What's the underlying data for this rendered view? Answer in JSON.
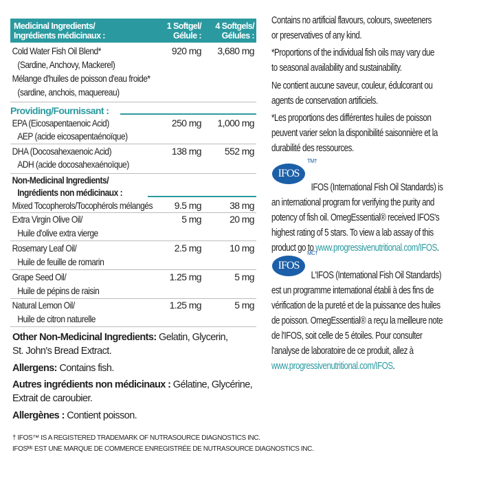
{
  "table": {
    "header": {
      "col0_line1": "Medicinal Ingredients/",
      "col0_line2": "Ingrédients médicinaux :",
      "col1_line1": "1 Softgel/",
      "col1_line2": "Gélule :",
      "col2_line1": "4 Softgels/",
      "col2_line2": "Gélules :"
    },
    "fish_oil": {
      "name": "Cold Water Fish Oil Blend*",
      "sub": "(Sardine, Anchovy, Mackerel)",
      "name_fr": "Mélange d'huiles de poisson d'eau froide*",
      "sub_fr": "(sardine, anchois, maquereau)",
      "v1": "920 mg",
      "v2": "3,680 mg"
    },
    "providing_label": "Providing/Fournissant :",
    "epa": {
      "name": "EPA (Eicosapentaenoic Acid)",
      "sub": "AEP (acide eicosapentaénoïque)",
      "v1": "250 mg",
      "v2": "1,000 mg"
    },
    "dha": {
      "name": "DHA (Docosahexaenoic Acid)",
      "sub": "ADH (acide docosahexaénoïque)",
      "v1": "138 mg",
      "v2": "552 mg"
    },
    "non_medicinal_label_line1": "Non-Medicinal Ingredients/",
    "non_medicinal_label_line2": "Ingrédients non médicinaux :",
    "non_medicinal": [
      {
        "name": "Mixed Tocopherols/Tocophérols mélangés",
        "sub": "",
        "v1": "9.5 mg",
        "v2": "38 mg"
      },
      {
        "name": "Extra Virgin Olive Oil/",
        "sub": "Huile d'olive extra vierge",
        "v1": "5 mg",
        "v2": "20 mg"
      },
      {
        "name": "Rosemary Leaf Oil/",
        "sub": "Huile de feuille de romarin",
        "v1": "2.5 mg",
        "v2": "10 mg"
      },
      {
        "name": "Grape Seed Oil/",
        "sub": "Huile de pépins de raisin",
        "v1": "1.25 mg",
        "v2": "5 mg"
      },
      {
        "name": "Natural Lemon Oil/",
        "sub": "Huile de citron naturelle",
        "v1": "1.25 mg",
        "v2": "5 mg"
      }
    ]
  },
  "other": {
    "other_label": "Other Non-Medicinal Ingredients:",
    "other_text": " Gelatin, Glycerin,",
    "other_text2": "St. John's Bread Extract.",
    "allergens_label": "Allergens:",
    "allergens_text": " Contains fish.",
    "autres_label": "Autres ingrédients non médicinaux :",
    "autres_text": " Gélatine, Glycérine,",
    "autres_text2": "Extrait de caroubier.",
    "allergenes_label": "Allergènes :",
    "allergenes_text": " Contient poisson."
  },
  "right": {
    "p1": [
      "Contains no artificial flavours, colours, sweeteners",
      "or preservatives of any kind."
    ],
    "p2": [
      "*Proportions of the individual fish oils may vary due",
      "to seasonal availability and sustainability."
    ],
    "p3": [
      "Ne contient aucune saveur, couleur, édulcorant ou",
      "agents de conservation artificiels."
    ],
    "p4": [
      "*Les proportions des différentes huiles de poisson",
      "peuvent varier selon la disponibilité saisonnière et la",
      "durabilité des ressources."
    ],
    "ifos_logo": "IFOS",
    "ifos_sup_en": "TM†",
    "ifos_sup_fr": "MC†",
    "ifos_en": [
      "IFOS (International Fish Oil Standards) is",
      "an international program for verifying the purity and",
      "potency of fish oil. OmegEssential® received IFOS's",
      "highest rating of 5 stars. To view a lab assay of this",
      "product go to "
    ],
    "ifos_en_link": "www.progressivenutritional.com/IFOS",
    "ifos_fr": [
      "L'IFOS (International Fish Oil Standards)",
      "est un programme international établi à des fins de",
      "vérification de la pureté et de la puissance des huiles",
      "de poisson. OmegEssential® a reçu la meilleure note",
      "de l'IFOS, soit celle de 5 étoiles. Pour consulter",
      "l'analyse de laboratoire de ce produit, allez à"
    ],
    "ifos_fr_link": "www.progressivenutritional.com/IFOS"
  },
  "footnotes": [
    "† IFOS™ IS A REGISTERED TRADEMARK OF NUTRASOURCE DIAGNOSTICS INC.",
    "IFOSᴹᶜ EST UNE MARQUE DE COMMERCE ENREGISTRÉE DE NUTRASOURCE DIAGNOSTICS INC."
  ],
  "colors": {
    "accent": "#2a9aa0",
    "logo": "#1b5fa8"
  }
}
